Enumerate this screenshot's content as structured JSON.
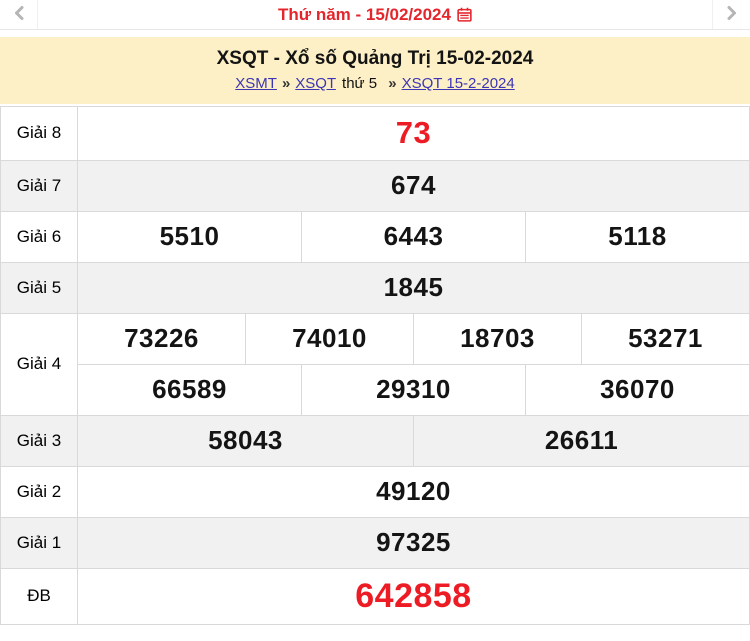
{
  "header": {
    "date_label": "Thứ năm - 15/02/2024"
  },
  "banner": {
    "title": "XSQT - Xổ số Quảng Trị 15-02-2024",
    "sep": "»",
    "breadcrumb": {
      "xsmt": "XSMT",
      "xsqt": "XSQT",
      "middle": "thứ 5",
      "date_link": "XSQT 15-2-2024"
    }
  },
  "results": {
    "rows": [
      {
        "label": "Giải 8",
        "highlight": true,
        "shade": false,
        "numbers": [
          [
            "73"
          ]
        ]
      },
      {
        "label": "Giải 7",
        "highlight": false,
        "shade": true,
        "numbers": [
          [
            "674"
          ]
        ]
      },
      {
        "label": "Giải 6",
        "highlight": false,
        "shade": false,
        "numbers": [
          [
            "5510",
            "6443",
            "5118"
          ]
        ]
      },
      {
        "label": "Giải 5",
        "highlight": false,
        "shade": true,
        "numbers": [
          [
            "1845"
          ]
        ]
      },
      {
        "label": "Giải 4",
        "highlight": false,
        "shade": false,
        "numbers": [
          [
            "73226",
            "74010",
            "18703",
            "53271"
          ],
          [
            "66589",
            "29310",
            "36070"
          ]
        ]
      },
      {
        "label": "Giải 3",
        "highlight": false,
        "shade": true,
        "numbers": [
          [
            "58043",
            "26611"
          ]
        ]
      },
      {
        "label": "Giải 2",
        "highlight": false,
        "shade": false,
        "numbers": [
          [
            "49120"
          ]
        ]
      },
      {
        "label": "Giải 1",
        "highlight": false,
        "shade": true,
        "numbers": [
          [
            "97325"
          ]
        ]
      },
      {
        "label": "ĐB",
        "highlight": true,
        "shade": false,
        "numbers": [
          [
            "642858"
          ]
        ]
      }
    ]
  },
  "icons": {
    "chevron_left": "‹",
    "chevron_right": "›",
    "calendar": "calendar-grid"
  },
  "colors": {
    "accent_red": "#ed1c24",
    "date_red": "#e4262c",
    "banner_yellow": "#fdf0c6",
    "link_blue": "#3c35b5",
    "shade_gray": "#f1f1f1",
    "border_gray": "#d9d9d9"
  }
}
